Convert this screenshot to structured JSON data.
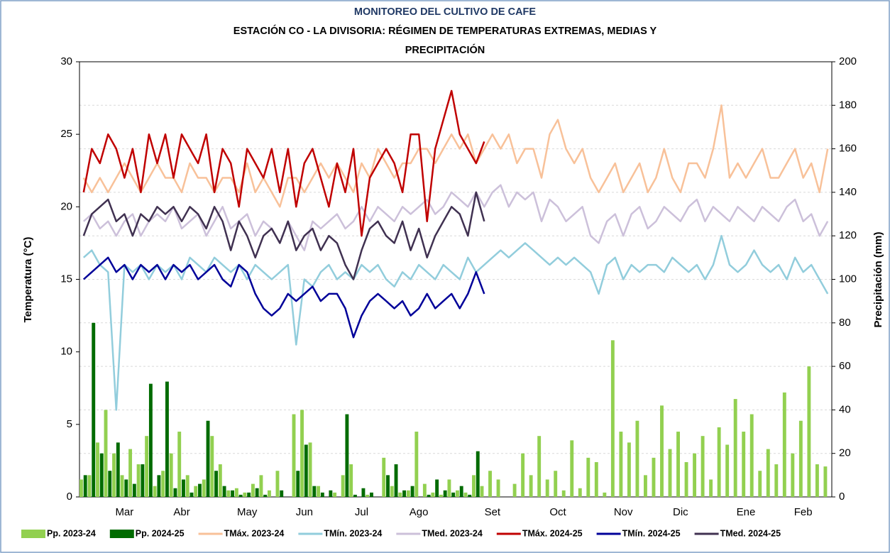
{
  "chart_data": {
    "type": "line",
    "title": "MONITOREO DEL CULTIVO DE CAFE",
    "subtitle": "ESTACIÓN  CO - LA DIVISORIA: RÉGIMEN DE TEMPERATURAS EXTREMAS, MEDIAS Y PRECIPITACIÓN",
    "y_label": "Temperatura (°C)",
    "y2_label": "Precipitación (mm)",
    "ylim": [
      0,
      30
    ],
    "yticks": [
      0,
      5,
      10,
      15,
      20,
      25,
      30
    ],
    "y2lim": [
      0,
      200
    ],
    "y2ticks": [
      0,
      20,
      40,
      60,
      80,
      100,
      120,
      140,
      160,
      180,
      200
    ],
    "grid": true,
    "legend": "bottom",
    "categories": [
      null,
      null,
      null,
      null,
      null,
      "Mar",
      null,
      null,
      null,
      null,
      null,
      null,
      "Abr",
      null,
      null,
      null,
      null,
      null,
      null,
      null,
      "May",
      null,
      null,
      null,
      null,
      null,
      null,
      "Jun",
      null,
      null,
      null,
      null,
      null,
      null,
      "Jul",
      null,
      null,
      null,
      null,
      null,
      null,
      "Ago",
      null,
      null,
      null,
      null,
      null,
      null,
      null,
      null,
      "Set",
      null,
      null,
      null,
      null,
      null,
      null,
      null,
      "Oct",
      null,
      null,
      null,
      null,
      null,
      null,
      null,
      "Nov",
      null,
      null,
      null,
      null,
      null,
      null,
      "Dic",
      null,
      null,
      null,
      null,
      null,
      null,
      null,
      "Ene",
      null,
      null,
      null,
      null,
      null,
      null,
      "Feb",
      null,
      null,
      null
    ],
    "series": [
      {
        "name": "Pp. 2023-24",
        "type": "bar",
        "axis": "y2",
        "color": "#92d050",
        "values": [
          8,
          10,
          25,
          40,
          20,
          10,
          22,
          15,
          28,
          5,
          12,
          20,
          30,
          10,
          5,
          8,
          28,
          15,
          3,
          4,
          2,
          6,
          10,
          3,
          12,
          0,
          38,
          40,
          25,
          5,
          0,
          2,
          10,
          15,
          0,
          1,
          0,
          18,
          5,
          2,
          3,
          30,
          6,
          2,
          1,
          8,
          3,
          2,
          10,
          5,
          12,
          8,
          0,
          6,
          20,
          10,
          28,
          8,
          12,
          3,
          26,
          4,
          18,
          16,
          2,
          72,
          30,
          25,
          35,
          10,
          18,
          42,
          22,
          30,
          16,
          20,
          28,
          8,
          32,
          24,
          45,
          30,
          38,
          12,
          22,
          15,
          48,
          20,
          35,
          60,
          15,
          14
        ]
      },
      {
        "name": "Pp. 2024-25",
        "type": "bar",
        "axis": "y2",
        "color": "#006b00",
        "values": [
          10,
          80,
          20,
          12,
          25,
          8,
          6,
          15,
          52,
          10,
          53,
          4,
          8,
          2,
          6,
          35,
          12,
          5,
          3,
          1,
          2,
          4,
          1,
          0,
          3,
          0,
          12,
          24,
          5,
          2,
          3,
          0,
          38,
          1,
          4,
          2,
          0,
          10,
          15,
          3,
          5,
          0,
          1,
          8,
          3,
          2,
          5,
          1,
          21,
          0,
          null,
          null,
          null,
          null,
          null,
          null,
          null,
          null,
          null,
          null,
          null,
          null,
          null,
          null,
          null,
          null,
          null,
          null,
          null,
          null,
          null,
          null,
          null,
          null,
          null,
          null,
          null,
          null,
          null,
          null,
          null,
          null,
          null,
          null,
          null,
          null,
          null,
          null,
          null,
          null,
          null,
          null
        ]
      },
      {
        "name": "TMáx. 2023-24",
        "type": "line",
        "color": "#f8c199",
        "values": [
          22,
          21,
          22,
          21,
          22,
          23,
          22,
          21,
          22,
          23,
          22,
          22,
          21,
          23,
          22,
          22,
          21,
          22,
          22,
          21,
          23,
          21,
          22,
          21,
          20,
          22,
          22,
          21,
          22,
          23,
          22,
          23,
          22,
          21,
          23,
          22,
          24,
          23,
          22,
          23,
          23,
          24,
          24,
          23,
          24,
          25,
          24,
          25,
          23,
          24,
          25,
          24,
          25,
          23,
          24,
          24,
          22,
          25,
          26,
          24,
          23,
          24,
          22,
          21,
          22,
          23,
          21,
          22,
          23,
          21,
          22,
          24,
          22,
          21,
          23,
          23,
          22,
          24,
          27,
          22,
          23,
          22,
          23,
          24,
          22,
          22,
          23,
          24,
          22,
          23,
          21,
          24
        ]
      },
      {
        "name": "TMín. 2023-24",
        "type": "line",
        "color": "#92cddc",
        "values": [
          16.5,
          17,
          16,
          15.5,
          6,
          16,
          15.5,
          16,
          15,
          16,
          15.5,
          16,
          15,
          16.5,
          16,
          15.5,
          16.5,
          16,
          15.5,
          16,
          15,
          16,
          15.5,
          15,
          15.5,
          16,
          10.5,
          15,
          14.5,
          15.5,
          16,
          15,
          15.5,
          15,
          16,
          15.5,
          16,
          15,
          14.5,
          15.5,
          15,
          16,
          15.5,
          15,
          16,
          15.5,
          15,
          16.5,
          15.5,
          16,
          16.5,
          17,
          16.5,
          17,
          17.5,
          17,
          16.5,
          16,
          16.5,
          16,
          16.5,
          16,
          15.5,
          14,
          16,
          16.5,
          15,
          16,
          15.5,
          16,
          16,
          15.5,
          16.5,
          16,
          15.5,
          16,
          15,
          16,
          18,
          16,
          15.5,
          16,
          17,
          16,
          15.5,
          16,
          15,
          16.5,
          15.5,
          16,
          15,
          14
        ]
      },
      {
        "name": "TMed. 2023-24",
        "type": "line",
        "color": "#ccc0da",
        "values": [
          19,
          19.5,
          18.5,
          19,
          18,
          19,
          19.5,
          18,
          19,
          19.5,
          19,
          20,
          18.5,
          19,
          19.5,
          18,
          19,
          20,
          18.5,
          19,
          19.5,
          18,
          19,
          18.5,
          17.5,
          19,
          18,
          17,
          19,
          18.5,
          19,
          19.5,
          18.5,
          19,
          20,
          19,
          20,
          19.5,
          19,
          20,
          19.5,
          20,
          20.5,
          19.5,
          20,
          21,
          20.5,
          20,
          21,
          20,
          21,
          21.5,
          20,
          21,
          20.5,
          21,
          19,
          20.5,
          20,
          19,
          19.5,
          20,
          18,
          17.5,
          19,
          19.5,
          18,
          19.5,
          20,
          18.5,
          19,
          20,
          19.5,
          19,
          20,
          20.5,
          19,
          20,
          19.5,
          19,
          20,
          19.5,
          19,
          20,
          19.5,
          19,
          20,
          20.5,
          19,
          19.5,
          18,
          19
        ]
      },
      {
        "name": "TMáx. 2024-25",
        "type": "line",
        "color": "#c00000",
        "values": [
          21,
          24,
          23,
          25,
          24,
          22,
          24,
          21,
          25,
          23,
          25,
          22,
          25,
          24,
          23,
          25,
          21,
          24,
          23,
          20,
          24,
          23,
          22,
          24,
          21,
          24,
          20,
          23,
          24,
          22,
          20,
          23,
          21,
          24,
          18,
          22,
          23,
          24,
          23,
          21,
          25,
          25,
          19,
          24,
          26,
          28,
          25,
          24,
          23,
          24.5,
          null,
          null,
          null,
          null,
          null,
          null,
          null,
          null,
          null,
          null,
          null,
          null,
          null,
          null,
          null,
          null,
          null,
          null,
          null,
          null,
          null,
          null,
          null,
          null,
          null,
          null,
          null,
          null,
          null,
          null,
          null,
          null,
          null,
          null,
          null,
          null,
          null,
          null,
          null,
          null,
          null,
          null
        ]
      },
      {
        "name": "TMín. 2024-25",
        "type": "line",
        "color": "#000099",
        "values": [
          15,
          15.5,
          16,
          16.5,
          15.5,
          16,
          15,
          16,
          15.5,
          16,
          15,
          16,
          15.5,
          16,
          15,
          15.5,
          16,
          15,
          14.5,
          16,
          15.5,
          14,
          13,
          12.5,
          13,
          14,
          13.5,
          14,
          14.5,
          13.5,
          14,
          14,
          13,
          11,
          12.5,
          13.5,
          14,
          13.5,
          13,
          13.5,
          12.5,
          13,
          14,
          13,
          13.5,
          14,
          13,
          14,
          15.5,
          14,
          null,
          null,
          null,
          null,
          null,
          null,
          null,
          null,
          null,
          null,
          null,
          null,
          null,
          null,
          null,
          null,
          null,
          null,
          null,
          null,
          null,
          null,
          null,
          null,
          null,
          null,
          null,
          null,
          null,
          null,
          null,
          null,
          null,
          null,
          null,
          null,
          null,
          null,
          null,
          null,
          null,
          null
        ]
      },
      {
        "name": "TMed. 2024-25",
        "type": "line",
        "color": "#403151",
        "values": [
          18,
          19.5,
          20,
          20.5,
          19,
          19.5,
          18,
          19.5,
          19,
          20,
          19.5,
          20,
          19,
          20,
          19.5,
          18.5,
          20,
          19,
          17,
          19,
          18,
          16.5,
          18,
          18.5,
          17.5,
          19,
          17,
          18,
          18.5,
          17,
          18,
          17.5,
          16,
          15,
          17,
          18.5,
          19,
          18,
          17.5,
          19,
          17,
          18.5,
          16.5,
          18,
          19,
          20,
          19.5,
          18,
          21,
          19,
          null,
          null,
          null,
          null,
          null,
          null,
          null,
          null,
          null,
          null,
          null,
          null,
          null,
          null,
          null,
          null,
          null,
          null,
          null,
          null,
          null,
          null,
          null,
          null,
          null,
          null,
          null,
          null,
          null,
          null,
          null,
          null,
          null,
          null,
          null,
          null,
          null,
          null,
          null,
          null,
          null,
          null
        ]
      }
    ]
  }
}
